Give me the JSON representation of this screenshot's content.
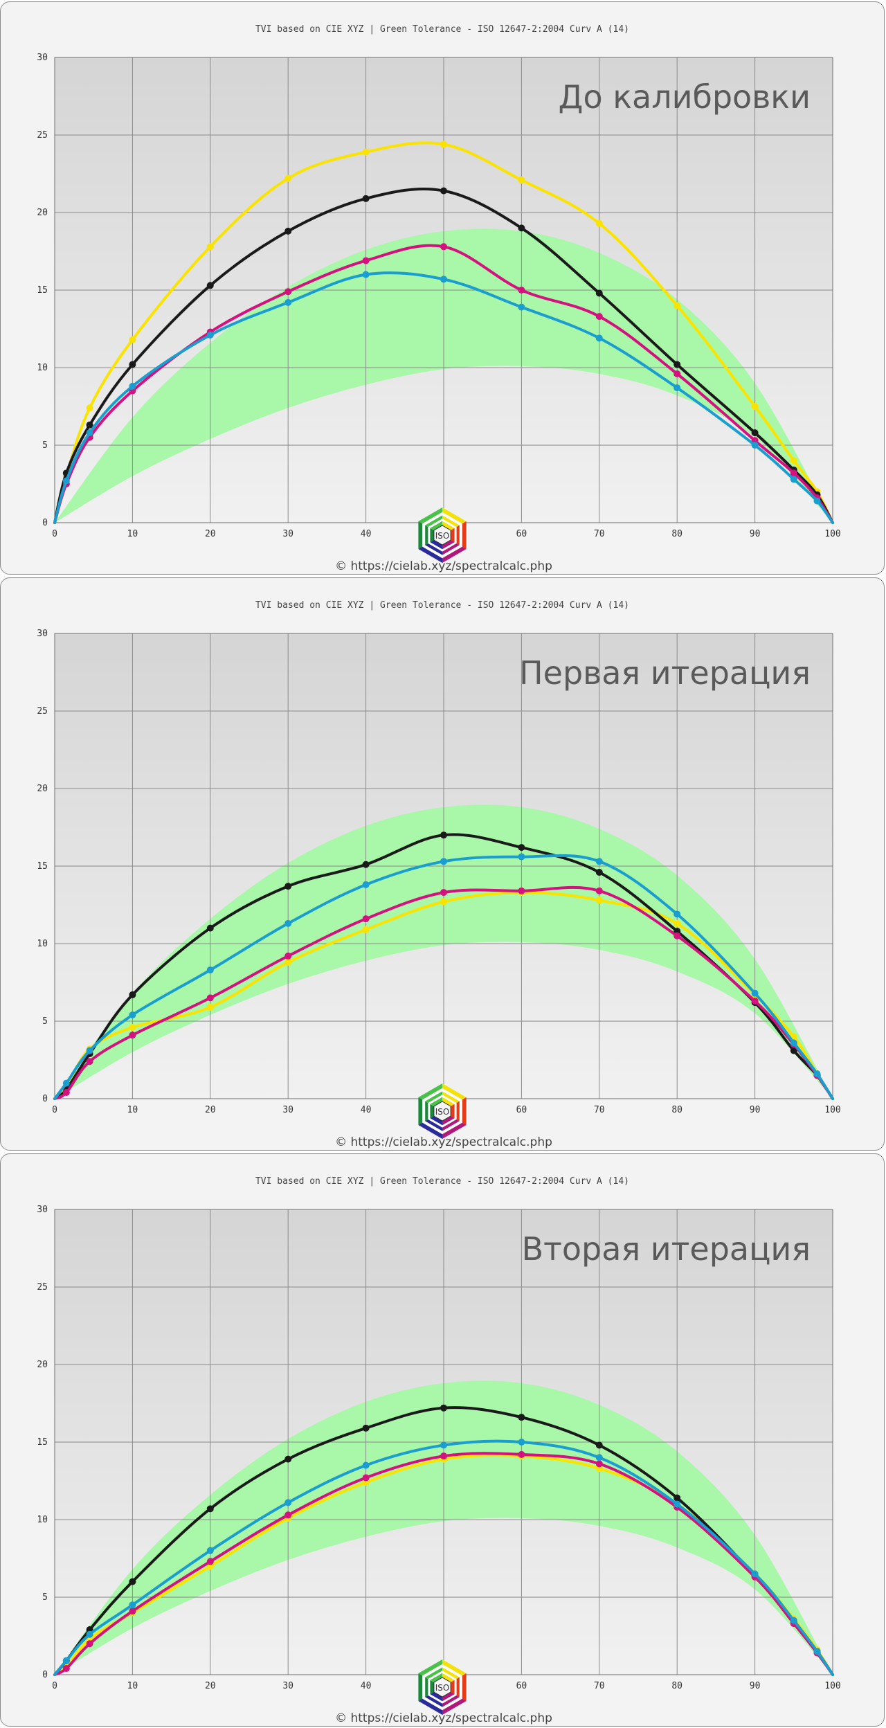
{
  "chart_data": [
    {
      "type": "line",
      "title": "TVI based on CIE XYZ  |  Green Tolerance - ISO 12647-2:2004 Curv A (14)",
      "annotation": "До калибровки",
      "credit": "© https://cielab.xyz/spectralcalc.php",
      "xlim": [
        0,
        100
      ],
      "ylim": [
        0,
        30
      ],
      "x_ticks": [
        0,
        10,
        20,
        30,
        40,
        50,
        60,
        70,
        80,
        90,
        100
      ],
      "y_ticks": [
        0,
        5,
        10,
        15,
        20,
        25,
        30
      ],
      "grid": true,
      "tolerance_band": {
        "x": [
          0,
          10,
          20,
          30,
          40,
          50,
          60,
          70,
          80,
          90,
          100
        ],
        "lower": [
          0,
          3.0,
          5.4,
          7.4,
          8.9,
          9.9,
          10.1,
          9.6,
          8.2,
          5.5,
          0
        ],
        "upper": [
          0,
          6.8,
          11.6,
          15.2,
          17.6,
          18.8,
          18.8,
          17.4,
          14.4,
          9.0,
          0
        ]
      },
      "series": [
        {
          "color": "#fbe300",
          "x": [
            0,
            1.5,
            4.5,
            10,
            20,
            30,
            40,
            50,
            60,
            70,
            80,
            90,
            95,
            98,
            100
          ],
          "values": [
            0,
            3.0,
            7.4,
            11.8,
            17.8,
            22.2,
            23.9,
            24.4,
            22.1,
            19.3,
            14.0,
            7.5,
            4.0,
            2.0,
            0
          ]
        },
        {
          "color": "#1a1a1a",
          "x": [
            0,
            1.5,
            4.5,
            10,
            20,
            30,
            40,
            50,
            60,
            70,
            80,
            90,
            95,
            98,
            100
          ],
          "values": [
            0,
            3.2,
            6.3,
            10.2,
            15.3,
            18.8,
            20.9,
            21.4,
            19.0,
            14.8,
            10.2,
            5.8,
            3.4,
            1.8,
            0
          ]
        },
        {
          "color": "#d4117e",
          "x": [
            0,
            1.5,
            4.5,
            10,
            20,
            30,
            40,
            50,
            60,
            70,
            80,
            90,
            95,
            98,
            100
          ],
          "values": [
            0,
            2.5,
            5.5,
            8.5,
            12.3,
            14.9,
            16.9,
            17.8,
            15.0,
            13.3,
            9.6,
            5.3,
            3.2,
            1.6,
            0
          ]
        },
        {
          "color": "#1a9dcf",
          "x": [
            0,
            1.5,
            4.5,
            10,
            20,
            30,
            40,
            50,
            60,
            70,
            80,
            90,
            95,
            98,
            100
          ],
          "values": [
            0,
            2.7,
            5.8,
            8.8,
            12.1,
            14.2,
            16.0,
            15.7,
            13.9,
            11.9,
            8.7,
            5.0,
            2.8,
            1.4,
            0
          ]
        }
      ]
    },
    {
      "type": "line",
      "title": "TVI based on CIE XYZ  |  Green Tolerance - ISO 12647-2:2004 Curv A (14)",
      "annotation": "Первая итерация",
      "credit": "© https://cielab.xyz/spectralcalc.php",
      "xlim": [
        0,
        100
      ],
      "ylim": [
        0,
        30
      ],
      "x_ticks": [
        0,
        10,
        20,
        30,
        40,
        50,
        60,
        70,
        80,
        90,
        100
      ],
      "y_ticks": [
        0,
        5,
        10,
        15,
        20,
        25,
        30
      ],
      "grid": true,
      "tolerance_band": {
        "x": [
          0,
          10,
          20,
          30,
          40,
          50,
          60,
          70,
          80,
          90,
          100
        ],
        "lower": [
          0,
          3.0,
          5.4,
          7.4,
          8.9,
          9.9,
          10.1,
          9.6,
          8.2,
          5.5,
          0
        ],
        "upper": [
          0,
          6.8,
          11.6,
          15.2,
          17.6,
          18.8,
          18.8,
          17.4,
          14.4,
          9.0,
          0
        ]
      },
      "series": [
        {
          "color": "#fbe300",
          "x": [
            0,
            1.5,
            4.5,
            10,
            20,
            30,
            40,
            50,
            60,
            70,
            80,
            90,
            95,
            98,
            100
          ],
          "values": [
            0,
            0.8,
            3.2,
            4.6,
            5.9,
            8.8,
            10.9,
            12.7,
            13.3,
            12.8,
            11.3,
            6.7,
            4.0,
            1.6,
            0
          ]
        },
        {
          "color": "#1a1a1a",
          "x": [
            0,
            1.5,
            4.5,
            10,
            20,
            30,
            40,
            50,
            60,
            70,
            80,
            90,
            95,
            98,
            100
          ],
          "values": [
            0,
            0.6,
            2.9,
            6.7,
            11.0,
            13.7,
            15.1,
            17.0,
            16.2,
            14.6,
            10.8,
            6.2,
            3.1,
            1.5,
            0
          ]
        },
        {
          "color": "#d4117e",
          "x": [
            0,
            1.5,
            4.5,
            10,
            20,
            30,
            40,
            50,
            60,
            70,
            80,
            90,
            95,
            98,
            100
          ],
          "values": [
            0,
            0.4,
            2.4,
            4.1,
            6.5,
            9.2,
            11.6,
            13.3,
            13.4,
            13.4,
            10.5,
            6.3,
            3.5,
            1.5,
            0
          ]
        },
        {
          "color": "#1a9dcf",
          "x": [
            0,
            1.5,
            4.5,
            10,
            20,
            30,
            40,
            50,
            60,
            70,
            80,
            90,
            95,
            98,
            100
          ],
          "values": [
            0,
            1.0,
            3.1,
            5.4,
            8.3,
            11.3,
            13.8,
            15.3,
            15.6,
            15.3,
            11.9,
            6.8,
            3.6,
            1.6,
            0
          ]
        }
      ]
    },
    {
      "type": "line",
      "title": "TVI based on CIE XYZ  |  Green Tolerance - ISO 12647-2:2004 Curv A (14)",
      "annotation": "Вторая итерация",
      "credit": "© https://cielab.xyz/spectralcalc.php",
      "xlim": [
        0,
        100
      ],
      "ylim": [
        0,
        30
      ],
      "x_ticks": [
        0,
        10,
        20,
        30,
        40,
        50,
        60,
        70,
        80,
        90,
        100
      ],
      "y_ticks": [
        0,
        5,
        10,
        15,
        20,
        25,
        30
      ],
      "grid": true,
      "tolerance_band": {
        "x": [
          0,
          10,
          20,
          30,
          40,
          50,
          60,
          70,
          80,
          90,
          100
        ],
        "lower": [
          0,
          3.0,
          5.4,
          7.4,
          8.9,
          9.9,
          10.1,
          9.6,
          8.2,
          5.5,
          0
        ],
        "upper": [
          0,
          6.8,
          11.6,
          15.2,
          17.6,
          18.8,
          18.8,
          17.4,
          14.4,
          9.0,
          0
        ]
      },
      "series": [
        {
          "color": "#fbe300",
          "x": [
            0,
            1.5,
            4.5,
            10,
            20,
            30,
            40,
            50,
            60,
            70,
            80,
            90,
            95,
            98,
            100
          ],
          "values": [
            0,
            0.5,
            2.3,
            4.0,
            7.0,
            10.1,
            12.4,
            13.9,
            14.1,
            13.3,
            11.0,
            6.5,
            3.6,
            1.6,
            0
          ]
        },
        {
          "color": "#1a1a1a",
          "x": [
            0,
            1.5,
            4.5,
            10,
            20,
            30,
            40,
            50,
            60,
            70,
            80,
            90,
            95,
            98,
            100
          ],
          "values": [
            0,
            0.9,
            2.9,
            6.0,
            10.7,
            13.9,
            15.9,
            17.2,
            16.6,
            14.8,
            11.4,
            6.4,
            3.4,
            1.5,
            0
          ]
        },
        {
          "color": "#d4117e",
          "x": [
            0,
            1.5,
            4.5,
            10,
            20,
            30,
            40,
            50,
            60,
            70,
            80,
            90,
            95,
            98,
            100
          ],
          "values": [
            0,
            0.4,
            2.0,
            4.1,
            7.3,
            10.3,
            12.7,
            14.1,
            14.2,
            13.6,
            10.8,
            6.3,
            3.3,
            1.4,
            0
          ]
        },
        {
          "color": "#1a9dcf",
          "x": [
            0,
            1.5,
            4.5,
            10,
            20,
            30,
            40,
            50,
            60,
            70,
            80,
            90,
            95,
            98,
            100
          ],
          "values": [
            0,
            0.9,
            2.6,
            4.5,
            8.0,
            11.1,
            13.5,
            14.8,
            15.0,
            14.0,
            11.0,
            6.5,
            3.5,
            1.5,
            0
          ]
        }
      ]
    }
  ],
  "logo": {
    "icon": "iso-hexagon-logo",
    "text": "ISO"
  }
}
